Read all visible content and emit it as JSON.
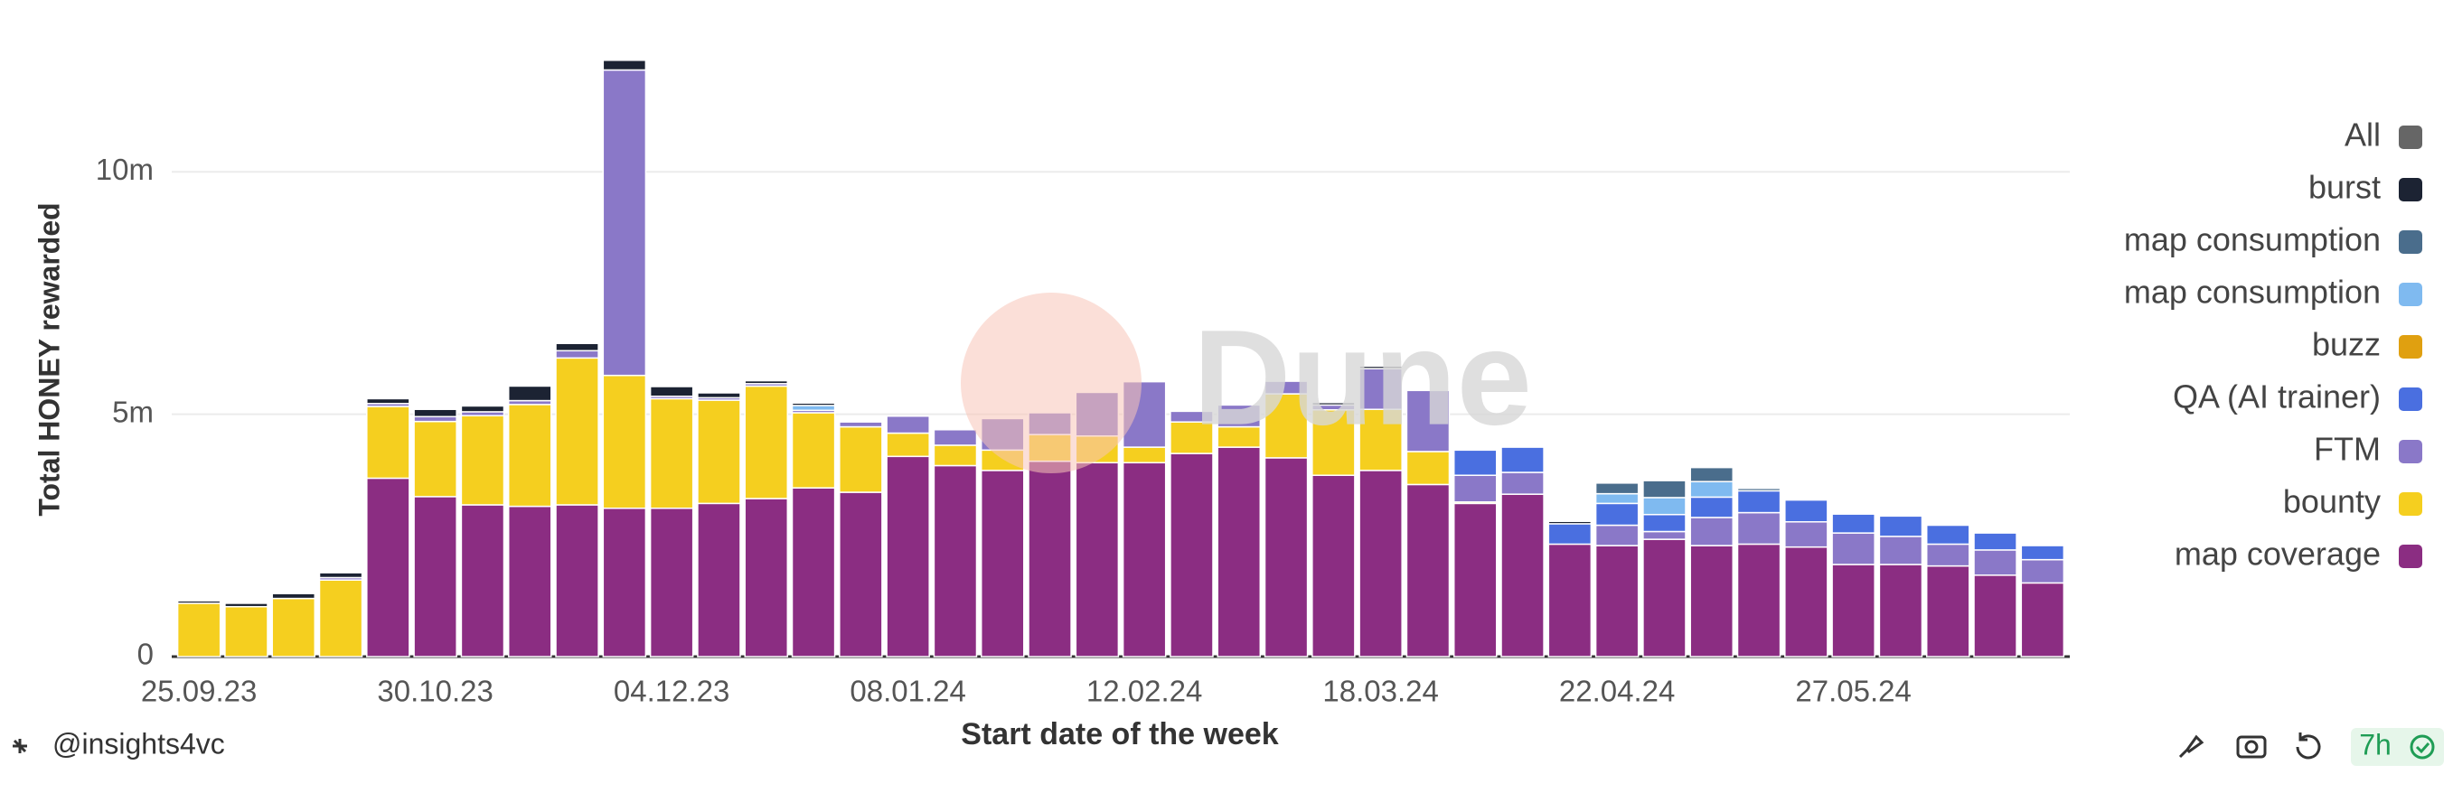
{
  "chart_data": {
    "type": "bar",
    "stacked": true,
    "ylabel": "Total HONEY rewarded",
    "xlabel": "Start date of the week",
    "categories": [
      "25.09.23",
      null,
      null,
      null,
      null,
      "30.10.23",
      null,
      null,
      null,
      null,
      "04.12.23",
      null,
      null,
      null,
      null,
      "08.01.24",
      null,
      null,
      null,
      null,
      "12.02.24",
      null,
      null,
      null,
      null,
      "18.03.24",
      null,
      null,
      null,
      null,
      "22.04.24",
      null,
      null,
      null,
      null,
      "27.05.24",
      null,
      null,
      null,
      null
    ],
    "series": [
      {
        "name": "map coverage",
        "color": "#8b2d82",
        "values": [
          0,
          0,
          0,
          0,
          3680000,
          3300000,
          3130000,
          3100000,
          3130000,
          3060000,
          3060000,
          3160000,
          3260000,
          3480000,
          3390000,
          4130000,
          3940000,
          3840000,
          4030000,
          4000000,
          4000000,
          4190000,
          4320000,
          4100000,
          3740000,
          3840000,
          3550000,
          3160000,
          3350000,
          2320000,
          2290000,
          2420000,
          2290000,
          2320000,
          2260000,
          1900000,
          1900000,
          1870000,
          1680000,
          1520000
        ]
      },
      {
        "name": "bounty",
        "color": "#f5cf1f",
        "values": [
          1100000,
          1030000,
          1200000,
          1580000,
          1480000,
          1550000,
          1840000,
          2100000,
          3030000,
          2740000,
          2260000,
          2130000,
          2320000,
          1550000,
          1350000,
          480000,
          420000,
          420000,
          550000,
          550000,
          320000,
          650000,
          420000,
          1320000,
          1350000,
          1260000,
          680000,
          30000,
          0,
          0,
          0,
          0,
          0,
          0,
          0,
          0,
          0,
          0,
          0,
          0
        ]
      },
      {
        "name": "FTM",
        "color": "#8a78c8",
        "values": [
          0,
          0,
          0,
          50000,
          60000,
          100000,
          80000,
          80000,
          150000,
          6300000,
          50000,
          50000,
          50000,
          50000,
          100000,
          350000,
          320000,
          650000,
          450000,
          900000,
          1350000,
          220000,
          450000,
          260000,
          100000,
          840000,
          1260000,
          550000,
          450000,
          0,
          420000,
          160000,
          580000,
          650000,
          520000,
          650000,
          580000,
          450000,
          520000,
          480000
        ]
      },
      {
        "name": "QA (AI trainer)",
        "color": "#4a6fe0",
        "values": [
          0,
          0,
          0,
          0,
          0,
          0,
          0,
          0,
          0,
          0,
          0,
          0,
          0,
          0,
          0,
          0,
          0,
          0,
          0,
          0,
          0,
          0,
          0,
          0,
          0,
          0,
          0,
          520000,
          520000,
          420000,
          450000,
          350000,
          420000,
          450000,
          450000,
          390000,
          420000,
          390000,
          350000,
          290000
        ]
      },
      {
        "name": "buzz",
        "color": "#e0a010",
        "values": [
          0,
          0,
          0,
          0,
          0,
          0,
          0,
          0,
          0,
          0,
          0,
          0,
          0,
          0,
          0,
          0,
          0,
          0,
          0,
          0,
          0,
          0,
          0,
          0,
          0,
          0,
          0,
          0,
          0,
          0,
          0,
          0,
          0,
          0,
          0,
          0,
          0,
          0,
          0,
          0
        ]
      },
      {
        "name": "map consumption",
        "color": "#7fbaf0",
        "values": [
          0,
          0,
          0,
          0,
          0,
          0,
          0,
          0,
          0,
          0,
          0,
          0,
          0,
          100000,
          0,
          0,
          0,
          0,
          0,
          0,
          0,
          0,
          0,
          0,
          0,
          0,
          0,
          0,
          0,
          0,
          200000,
          350000,
          320000,
          0,
          0,
          0,
          0,
          0,
          0,
          0
        ]
      },
      {
        "name": "map consumption",
        "color": "#4a6d8c",
        "values": [
          0,
          0,
          0,
          0,
          0,
          0,
          0,
          0,
          0,
          0,
          0,
          0,
          0,
          0,
          0,
          0,
          0,
          0,
          0,
          0,
          0,
          0,
          0,
          0,
          0,
          0,
          0,
          0,
          0,
          0,
          220000,
          350000,
          290000,
          50000,
          0,
          0,
          0,
          0,
          0,
          0
        ]
      },
      {
        "name": "burst",
        "color": "#1c2333",
        "values": [
          50000,
          70000,
          100000,
          100000,
          100000,
          150000,
          120000,
          300000,
          150000,
          200000,
          200000,
          100000,
          60000,
          50000,
          0,
          0,
          0,
          0,
          0,
          0,
          0,
          0,
          0,
          0,
          50000,
          50000,
          0,
          0,
          0,
          50000,
          0,
          0,
          0,
          0,
          0,
          0,
          0,
          0,
          0,
          0
        ]
      }
    ],
    "legend_toggle": {
      "name": "All",
      "color": "#666666"
    },
    "ylim": [
      0,
      12500000
    ],
    "yticks": [
      0,
      {
        "value": 5000000,
        "label": "5m"
      },
      {
        "value": 10000000,
        "label": "10m"
      }
    ],
    "grid": true,
    "legend": "right"
  },
  "watermark": "Dune",
  "author": "@insights4vc",
  "refresh": "7h"
}
